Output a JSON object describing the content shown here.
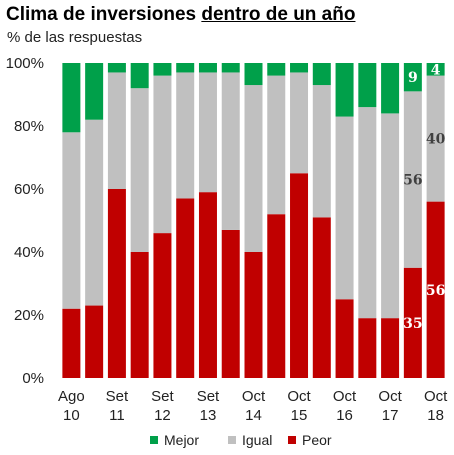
{
  "title_part1": "Clima de inversiones ",
  "title_part2": "dentro de un año",
  "subtitle": "% de las respuestas",
  "chart_data": {
    "type": "bar",
    "stacked": true,
    "title": "Clima de inversiones dentro de un año",
    "subtitle": "% de las respuestas",
    "ylim": [
      0,
      100
    ],
    "yticks": [
      "0%",
      "20%",
      "40%",
      "60%",
      "80%",
      "100%"
    ],
    "ytick_values": [
      0,
      20,
      40,
      60,
      80,
      100
    ],
    "x_labels": [
      {
        "top": "Ago",
        "bottom": "10"
      },
      {
        "top": "Set",
        "bottom": "11"
      },
      {
        "top": "Set",
        "bottom": "12"
      },
      {
        "top": "Set",
        "bottom": "13"
      },
      {
        "top": "Oct",
        "bottom": "14"
      },
      {
        "top": "Oct",
        "bottom": "15"
      },
      {
        "top": "Oct",
        "bottom": "16"
      },
      {
        "top": "Oct",
        "bottom": "17"
      },
      {
        "top": "Oct",
        "bottom": "18"
      }
    ],
    "series": [
      {
        "name": "Peor",
        "color": "#c00000",
        "values": [
          22,
          23,
          60,
          40,
          46,
          57,
          59,
          47,
          40,
          52,
          65,
          51,
          25,
          19,
          19,
          35,
          56
        ]
      },
      {
        "name": "Igual",
        "color": "#c0c0c0",
        "values": [
          56,
          59,
          37,
          52,
          50,
          40,
          38,
          50,
          53,
          44,
          32,
          42,
          58,
          67,
          65,
          56,
          40
        ]
      },
      {
        "name": "Mejor",
        "color": "#00a04a",
        "values": [
          22,
          18,
          3,
          8,
          4,
          3,
          3,
          3,
          7,
          4,
          3,
          7,
          17,
          14,
          16,
          9,
          4
        ]
      }
    ],
    "data_labels": [
      {
        "bar": 15,
        "series": "Peor",
        "text": "35",
        "color": "#ffffff"
      },
      {
        "bar": 15,
        "series": "Igual",
        "text": "56",
        "color": "#404040"
      },
      {
        "bar": 15,
        "series": "Mejor",
        "text": "9",
        "color": "#ffffff"
      },
      {
        "bar": 16,
        "series": "Peor",
        "text": "56",
        "color": "#ffffff"
      },
      {
        "bar": 16,
        "series": "Igual",
        "text": "40",
        "color": "#404040"
      },
      {
        "bar": 16,
        "series": "Mejor",
        "text": "4",
        "color": "#ffffff"
      }
    ],
    "legend": [
      "Mejor",
      "Igual",
      "Peor"
    ],
    "legend_position": "bottom",
    "grid": false
  }
}
